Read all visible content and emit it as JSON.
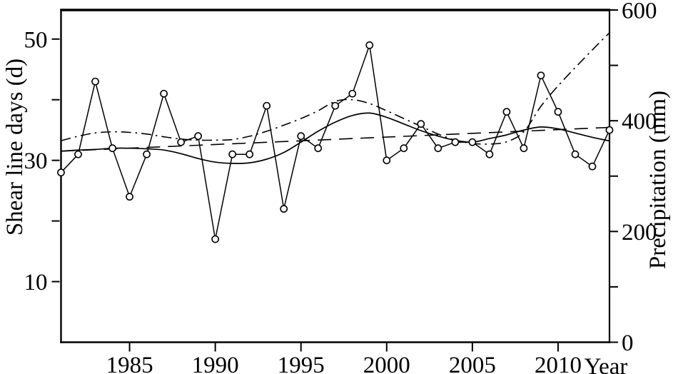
{
  "figure": {
    "background": "#ffffff",
    "ink": "#000000",
    "axes": {
      "left": {
        "title": "Shear line days (d)",
        "labeled_ticks": [
          10,
          30,
          50
        ],
        "minor_ticks": [
          20,
          40
        ],
        "range": [
          0,
          54.8
        ]
      },
      "right": {
        "title": "Precipitation (mm)",
        "labeled_ticks": [
          0,
          200,
          400,
          600
        ],
        "minor_ticks": [
          100,
          300,
          500
        ],
        "range": [
          0,
          600
        ]
      },
      "x": {
        "title": "Year",
        "labeled_ticks": [
          1985,
          1990,
          1995,
          2000,
          2005,
          2010
        ],
        "range": [
          1981,
          2013
        ]
      }
    }
  },
  "chart_data": {
    "type": "line",
    "title": "",
    "xlabel": "Year",
    "ylabel_left": "Shear line days (d)",
    "ylabel_right": "Precipitation (mm)",
    "xlim": [
      1981,
      2013
    ],
    "ylim_left": [
      0,
      54.8
    ],
    "ylim_right": [
      0,
      600
    ],
    "grid": false,
    "legend": false,
    "x": [
      1981,
      1982,
      1983,
      1984,
      1985,
      1986,
      1987,
      1988,
      1989,
      1990,
      1991,
      1992,
      1993,
      1994,
      1995,
      1996,
      1997,
      1998,
      1999,
      2000,
      2001,
      2002,
      2003,
      2004,
      2005,
      2006,
      2007,
      2008,
      2009,
      2010,
      2011,
      2012,
      2013
    ],
    "series": [
      {
        "name": "Shear line days (annual)",
        "axis": "left",
        "unit": "d",
        "style": "solid",
        "markers": "open-circle",
        "values": [
          28,
          31,
          43,
          32,
          24,
          31,
          41,
          33,
          34,
          17,
          31,
          31,
          39,
          22,
          34,
          32,
          39,
          41,
          49,
          30,
          32,
          36,
          32,
          33,
          33,
          31,
          38,
          32,
          44,
          38,
          31,
          29,
          35
        ]
      },
      {
        "name": "Shear line days (smoothed)",
        "axis": "left",
        "unit": "d",
        "style": "solid-smooth",
        "markers": "none",
        "values": [
          31.5,
          31.7,
          31.8,
          32.0,
          32.0,
          31.9,
          31.7,
          31.1,
          30.3,
          29.7,
          29.5,
          29.6,
          30.2,
          31.3,
          33.0,
          34.8,
          36.3,
          37.4,
          37.8,
          37.1,
          36.0,
          34.9,
          34.0,
          33.3,
          33.0,
          33.6,
          34.2,
          35.0,
          35.5,
          35.2,
          34.5,
          33.8,
          33.2
        ]
      },
      {
        "name": "Precipitation (smoothed)",
        "axis": "right",
        "unit": "mm",
        "style": "dash-dot",
        "markers": "none",
        "values": [
          364,
          372,
          378,
          380,
          379,
          376,
          371,
          367,
          365,
          365,
          366,
          372,
          381,
          392,
          404,
          418,
          435,
          438,
          431,
          418,
          404,
          390,
          376,
          365,
          359,
          358,
          362,
          380,
          426,
          463,
          496,
          528,
          559
        ]
      },
      {
        "name": "Precipitation (linear trend)",
        "axis": "right",
        "unit": "mm",
        "style": "long-dash",
        "markers": "none",
        "values": [
          345.0,
          346.3,
          347.7,
          349.0,
          350.4,
          351.7,
          353.1,
          354.4,
          355.8,
          357.1,
          358.4,
          359.8,
          361.1,
          362.5,
          363.8,
          365.2,
          366.5,
          367.8,
          369.2,
          370.5,
          371.9,
          373.2,
          374.6,
          375.9,
          377.3,
          378.6,
          379.9,
          381.3,
          382.6,
          384.0,
          385.3,
          386.7,
          388.0
        ]
      }
    ]
  }
}
